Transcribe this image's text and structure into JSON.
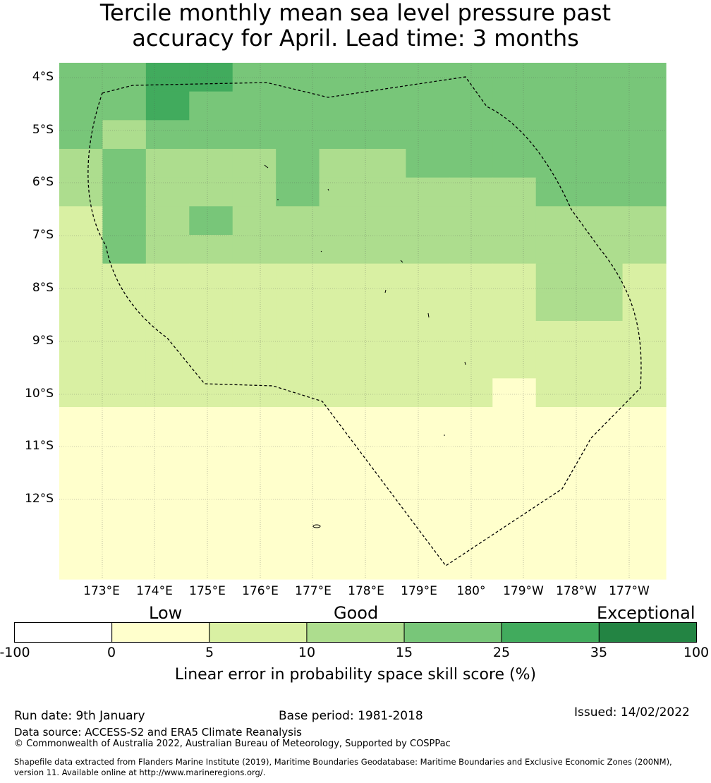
{
  "title": {
    "line1": "Tercile monthly mean sea level pressure past",
    "line2": "accuracy for April. Lead time: 3 months"
  },
  "map": {
    "lat_ticks": [
      "4°S",
      "5°S",
      "6°S",
      "7°S",
      "8°S",
      "9°S",
      "10°S",
      "11°S",
      "12°S"
    ],
    "lon_ticks": [
      "173°E",
      "174°E",
      "175°E",
      "176°E",
      "177°E",
      "178°E",
      "179°E",
      "180°",
      "179°W",
      "178°W",
      "177°W"
    ],
    "grid_rows": [
      "44554444444444",
      "44544444444444",
      "43444444444444",
      "34333433444444",
      "34333433333444",
      "24343333333333",
      "24333333333333",
      "22222222222332",
      "22222222222332",
      "22222222222222",
      "22222222222222",
      "22222222221222",
      "11111111111111",
      "11111111111111",
      "11111111111111",
      "11111111111111",
      "11111111111111",
      "11111111111111"
    ],
    "colors": [
      "#ffffff",
      "#ffffcc",
      "#d9f0a3",
      "#addd8e",
      "#78c679",
      "#41ab5d",
      "#238443"
    ]
  },
  "colorbar": {
    "categories": [
      "Low",
      "Good",
      "Exceptional"
    ],
    "ticks": [
      "-100",
      "0",
      "5",
      "10",
      "15",
      "25",
      "35",
      "100"
    ],
    "colors": [
      "#ffffff",
      "#ffffcc",
      "#d9f0a3",
      "#addd8e",
      "#78c679",
      "#41ab5d",
      "#238443"
    ],
    "label": "Linear error in probability space skill score (%)"
  },
  "footer": {
    "run_date": "Run date: 9th January",
    "base_period": "Base period: 1981-2018",
    "issued": "Issued: 14/02/2022",
    "data_source": "Data source: ACCESS-S2 and ERA5 Climate Reanalysis",
    "copyright": "© Commonwealth of Australia 2022, Australian Bureau of Meteorology, Supported by COSPPac",
    "shapefile_line1": "Shapefile data extracted from Flanders Marine Institute (2019), Maritime Boundaries Geodatabase: Maritime Boundaries and Exclusive Economic Zones (200NM),",
    "shapefile_line2": "version 11. Available online at http://www.marineregions.org/."
  }
}
